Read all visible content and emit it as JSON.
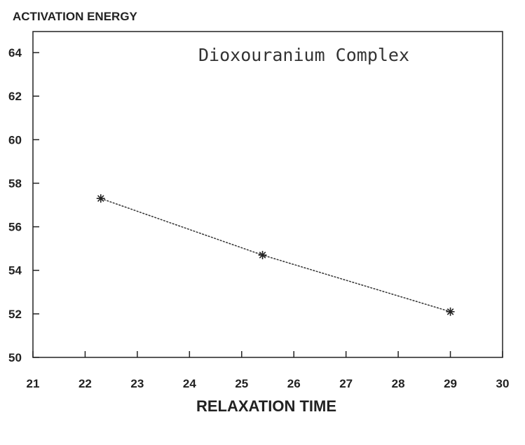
{
  "chart_data": {
    "type": "line",
    "ylabel": "ACTIVATION ENERGY",
    "xlabel": "RELAXATION TIME",
    "annotation": "Dioxouranium Complex",
    "xlim": [
      21,
      30
    ],
    "ylim": [
      50,
      65
    ],
    "x_ticks": [
      "21",
      "22",
      "23",
      "24",
      "25",
      "26",
      "27",
      "28",
      "29",
      "30"
    ],
    "y_ticks": [
      "50",
      "52",
      "54",
      "56",
      "58",
      "60",
      "62",
      "64"
    ],
    "grid": false,
    "series": [
      {
        "points": [
          {
            "x": 22.3,
            "y": 57.3
          },
          {
            "x": 25.4,
            "y": 54.7
          },
          {
            "x": 29.0,
            "y": 52.1
          }
        ],
        "marker": "asterisk",
        "line_style": "dashed"
      }
    ]
  }
}
